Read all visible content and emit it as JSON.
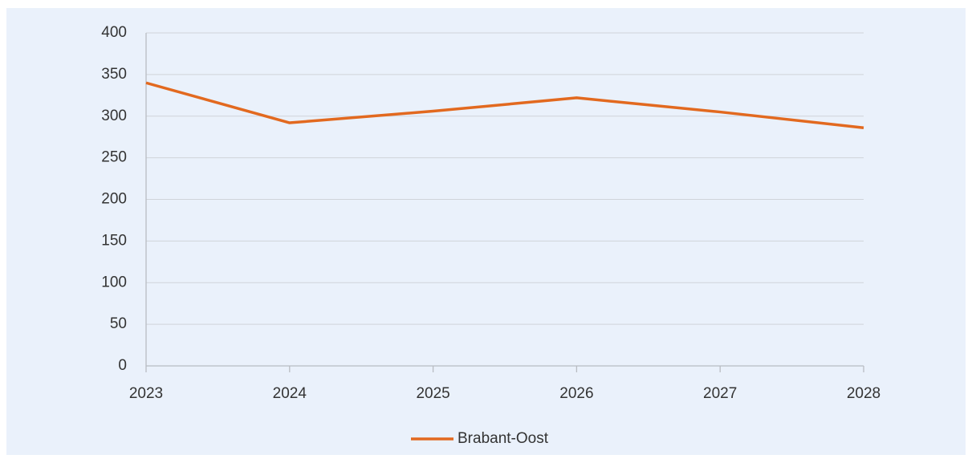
{
  "chart_data": {
    "type": "line",
    "categories": [
      "2023",
      "2024",
      "2025",
      "2026",
      "2027",
      "2028"
    ],
    "series": [
      {
        "name": "Brabant-Oost",
        "color": "#e2691f",
        "values": [
          340,
          292,
          306,
          322,
          305,
          286
        ]
      }
    ],
    "ylim": [
      0,
      400
    ],
    "yticks": [
      0,
      50,
      100,
      150,
      200,
      250,
      300,
      350,
      400
    ],
    "grid": true,
    "legend": "bottom"
  }
}
